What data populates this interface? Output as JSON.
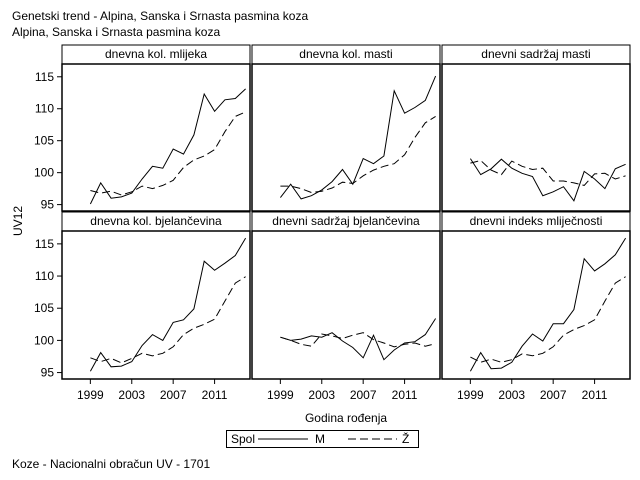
{
  "title": "Genetski trend - Alpina, Sanska i Srnasta pasmina koza",
  "subtitle": "Alpina, Sanska i Srnasta pasmina koza",
  "footer": "Koze - Nacionalni obračun UV - 1701",
  "chart_data": {
    "type": "line",
    "ylabel": "UV12",
    "xlabel": "Godina rođenja",
    "x_ticks": [
      1999,
      2003,
      2007,
      2011
    ],
    "y_ticks": [
      95,
      100,
      105,
      110,
      115
    ],
    "xlim": [
      1998,
      2015
    ],
    "ylim": [
      94,
      117
    ],
    "grid": false,
    "legend": {
      "title": "Spol",
      "position": "bottom",
      "entries": [
        {
          "label": "M",
          "style": "solid"
        },
        {
          "label": "Ž",
          "style": "dashed"
        }
      ]
    },
    "x": [
      1999,
      2000,
      2001,
      2002,
      2003,
      2004,
      2005,
      2006,
      2007,
      2008,
      2009,
      2010,
      2011,
      2012,
      2013,
      2014
    ],
    "panels": [
      {
        "title": "dnevna kol. mlijeka",
        "series": [
          {
            "name": "M",
            "values": [
              95.1,
              98.4,
              96.0,
              96.2,
              96.8,
              99.0,
              101.0,
              100.7,
              103.7,
              102.9,
              105.9,
              112.3,
              109.6,
              111.4,
              111.6,
              113.1
            ]
          },
          {
            "name": "Ž",
            "values": [
              97.2,
              96.8,
              97.1,
              96.5,
              97.0,
              97.9,
              97.5,
              98.0,
              98.8,
              100.8,
              102.0,
              102.6,
              103.6,
              106.4,
              108.8,
              109.5
            ]
          }
        ]
      },
      {
        "title": "dnevna kol. masti",
        "series": [
          {
            "name": "M",
            "values": [
              96.1,
              98.2,
              95.9,
              96.4,
              97.3,
              98.6,
              100.5,
              98.2,
              102.2,
              101.4,
              102.6,
              112.8,
              109.3,
              110.2,
              111.3,
              115.1
            ]
          },
          {
            "name": "Ž",
            "values": [
              97.9,
              97.9,
              97.5,
              96.9,
              97.1,
              97.6,
              98.5,
              98.3,
              99.5,
              100.4,
              101.0,
              101.4,
              102.8,
              105.5,
              107.8,
              108.8
            ]
          }
        ]
      },
      {
        "title": "dnevni sadržaj masti",
        "series": [
          {
            "name": "M",
            "values": [
              102.2,
              99.7,
              100.6,
              102.1,
              100.7,
              99.9,
              99.4,
              96.4,
              97.0,
              97.8,
              95.6,
              100.2,
              99.0,
              97.5,
              100.6,
              101.3
            ]
          },
          {
            "name": "Ž",
            "values": [
              101.5,
              101.9,
              100.4,
              99.7,
              101.8,
              101.0,
              100.5,
              100.7,
              98.7,
              98.7,
              98.4,
              98.0,
              99.8,
              99.9,
              99.0,
              99.5
            ]
          }
        ]
      },
      {
        "title": "dnevna kol. bjelančevina",
        "series": [
          {
            "name": "M",
            "values": [
              95.2,
              98.1,
              95.9,
              96.0,
              96.7,
              99.2,
              100.9,
              100.0,
              102.8,
              103.2,
              104.9,
              112.3,
              110.9,
              112.0,
              113.2,
              115.9
            ]
          },
          {
            "name": "Ž",
            "values": [
              97.3,
              96.7,
              97.2,
              96.5,
              97.2,
              98.0,
              97.6,
              98.0,
              99.0,
              100.9,
              101.9,
              102.5,
              103.3,
              106.1,
              108.9,
              109.9
            ]
          }
        ]
      },
      {
        "title": "dnevni sadržaj bjelančevina",
        "series": [
          {
            "name": "M",
            "values": [
              100.5,
              100.0,
              100.2,
              100.7,
              100.5,
              101.2,
              99.9,
              98.9,
              97.3,
              100.8,
              97.0,
              98.5,
              99.6,
              99.8,
              100.9,
              103.4
            ]
          },
          {
            "name": "Ž",
            "values": [
              100.5,
              100.0,
              99.4,
              99.1,
              101.0,
              100.7,
              100.3,
              100.8,
              101.2,
              100.1,
              99.6,
              99.0,
              99.4,
              99.6,
              99.1,
              99.5
            ]
          }
        ]
      },
      {
        "title": "dnevni indeks mliječnosti",
        "series": [
          {
            "name": "M",
            "values": [
              95.2,
              98.1,
              95.6,
              95.7,
              96.6,
              99.1,
              101.0,
              99.9,
              102.6,
              102.6,
              104.8,
              112.7,
              110.8,
              111.9,
              113.3,
              115.9
            ]
          },
          {
            "name": "Ž",
            "values": [
              97.4,
              96.6,
              97.1,
              96.6,
              97.0,
              97.9,
              97.6,
              98.0,
              99.0,
              100.8,
              101.7,
              102.3,
              103.2,
              106.1,
              108.9,
              109.9
            ]
          }
        ]
      }
    ]
  }
}
